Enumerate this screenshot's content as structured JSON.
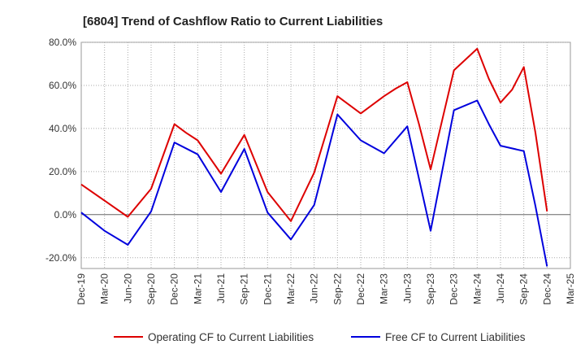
{
  "chart_data": {
    "type": "line",
    "title": "[6804]  Trend of Cashflow Ratio to Current Liabilities",
    "xlabel": "",
    "ylabel": "",
    "ylim": [
      -25,
      80
    ],
    "yticks": [
      80,
      60,
      40,
      20,
      0,
      -20
    ],
    "ytick_labels": [
      "80.0%",
      "60.0%",
      "40.0%",
      "20.0%",
      "0.0%",
      "-20.0%"
    ],
    "x_tick_labels": [
      "Dec-19",
      "Mar-20",
      "Jun-20",
      "Sep-20",
      "Dec-20",
      "Mar-21",
      "Jun-21",
      "Sep-21",
      "Dec-21",
      "Mar-22",
      "Jun-22",
      "Sep-22",
      "Dec-22",
      "Mar-23",
      "Jun-23",
      "Sep-23",
      "Dec-23",
      "Mar-24",
      "Jun-24",
      "Sep-24",
      "Dec-24",
      "Mar-25"
    ],
    "grid": true,
    "legend_position": "bottom",
    "series": [
      {
        "name": "Operating CF to Current Liabilities",
        "color": "#dd0000",
        "points": [
          [
            0,
            14
          ],
          [
            1,
            6.5
          ],
          [
            2,
            -1
          ],
          [
            3,
            12
          ],
          [
            4,
            42
          ],
          [
            4.5,
            38
          ],
          [
            5,
            34.5
          ],
          [
            6,
            19
          ],
          [
            7,
            37
          ],
          [
            8,
            10.5
          ],
          [
            9,
            -3
          ],
          [
            10,
            19.5
          ],
          [
            11,
            55
          ],
          [
            12,
            47
          ],
          [
            13,
            55
          ],
          [
            13.5,
            58.5
          ],
          [
            14,
            61.5
          ],
          [
            14.5,
            42
          ],
          [
            15,
            21
          ],
          [
            15.5,
            44
          ],
          [
            16,
            67
          ],
          [
            17,
            77
          ],
          [
            17.5,
            63
          ],
          [
            18,
            52
          ],
          [
            18.5,
            58
          ],
          [
            19,
            68.5
          ],
          [
            19.5,
            38
          ],
          [
            20,
            1.5
          ]
        ]
      },
      {
        "name": "Free CF to Current Liabilities",
        "color": "#0000dd",
        "points": [
          [
            0,
            1
          ],
          [
            1,
            -7.5
          ],
          [
            2,
            -14
          ],
          [
            3,
            1.5
          ],
          [
            4,
            33.5
          ],
          [
            5,
            28
          ],
          [
            6,
            10.5
          ],
          [
            7,
            30.5
          ],
          [
            8,
            1
          ],
          [
            9,
            -11.5
          ],
          [
            10,
            4.5
          ],
          [
            11,
            46.5
          ],
          [
            12,
            34.5
          ],
          [
            13,
            28.5
          ],
          [
            14,
            41
          ],
          [
            15,
            -7.5
          ],
          [
            16,
            48.5
          ],
          [
            17,
            53
          ],
          [
            17.5,
            42
          ],
          [
            18,
            32
          ],
          [
            19,
            29.5
          ],
          [
            19.5,
            4
          ],
          [
            20,
            -24
          ]
        ]
      }
    ]
  }
}
